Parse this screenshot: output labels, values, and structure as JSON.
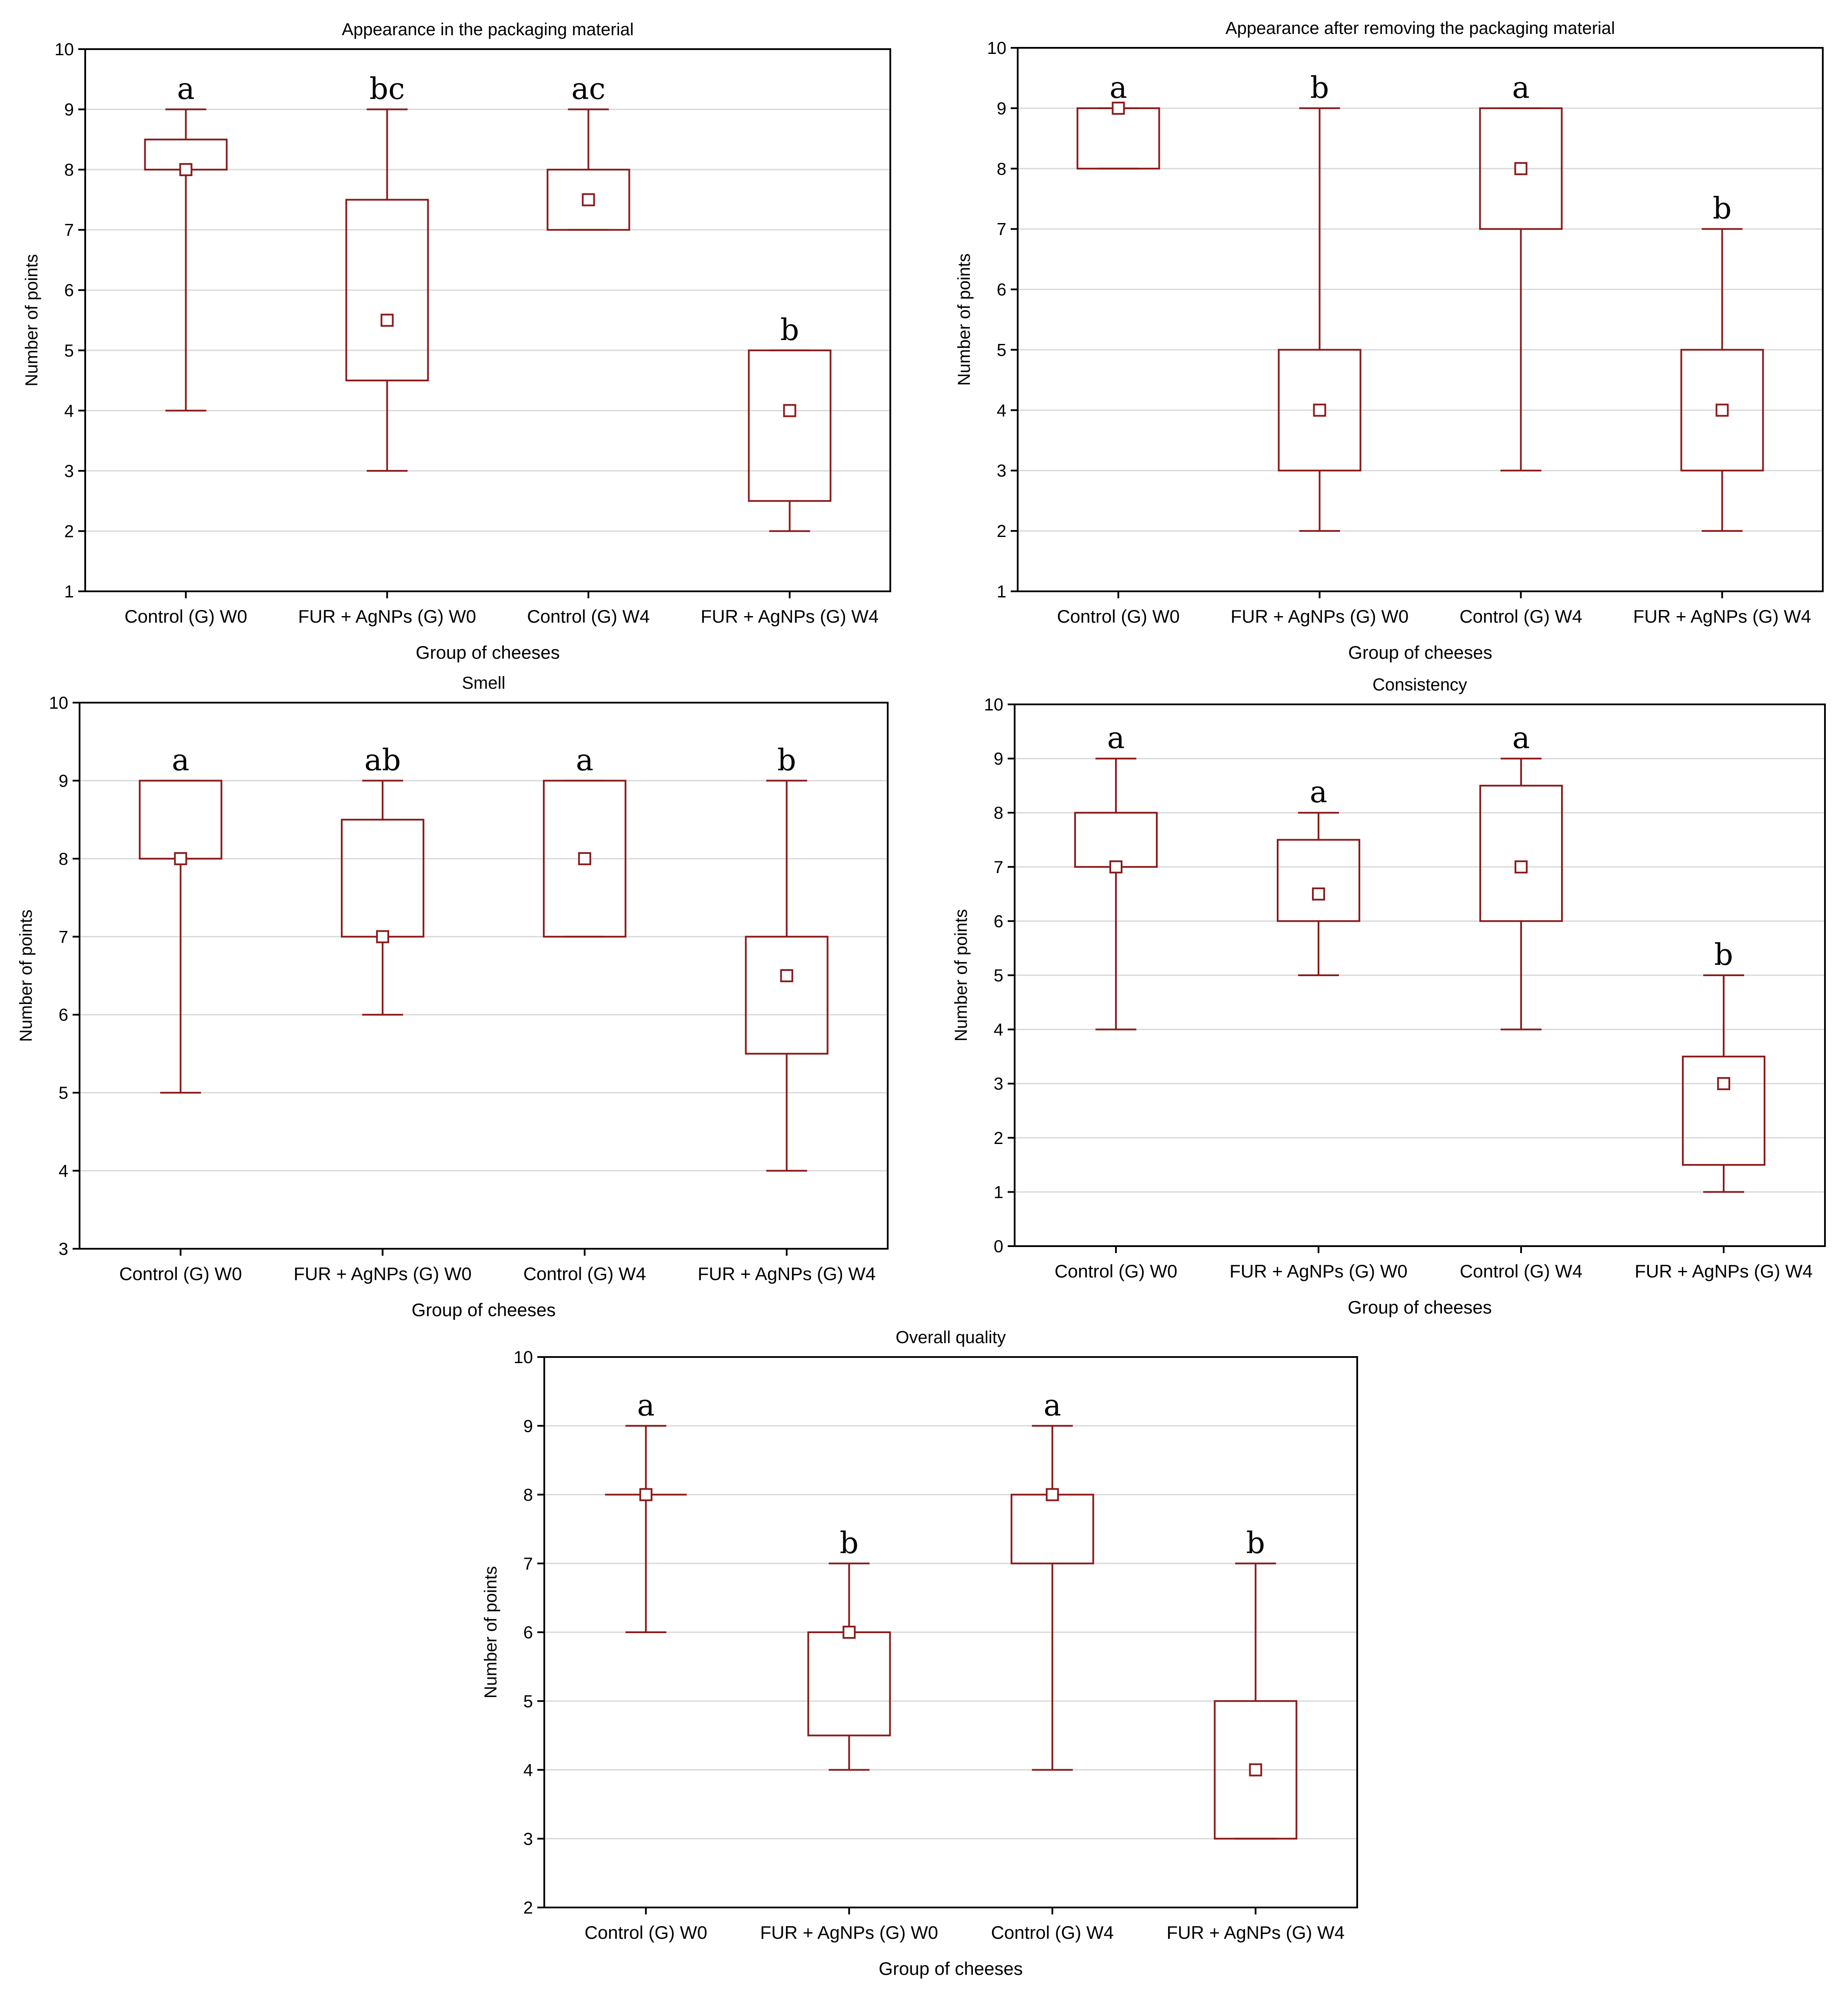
{
  "colors": {
    "box": "#8b1a1a",
    "grid": "#d9d9d9",
    "axis": "#000000"
  },
  "chart_data": [
    {
      "type": "box",
      "title": "Appearance in the packaging material",
      "xlabel": "Group of cheeses",
      "ylabel": "Number of points",
      "ylim": [
        1,
        10
      ],
      "yticks": [
        "1",
        "2",
        "3",
        "4",
        "5",
        "6",
        "7",
        "8",
        "9",
        "10"
      ],
      "categories": [
        "Control (G) W0",
        "FUR + AgNPs (G) W0",
        "Control (G) W4",
        "FUR + AgNPs (G) W4"
      ],
      "boxes": [
        {
          "min": 4,
          "q1": 8,
          "median": 8,
          "q3": 8.5,
          "max": 9,
          "letter": "a"
        },
        {
          "min": 3,
          "q1": 4.5,
          "median": 5.5,
          "q3": 7.5,
          "max": 9,
          "letter": "bc"
        },
        {
          "min": 7,
          "q1": 7,
          "median": 7.5,
          "q3": 8,
          "max": 9,
          "letter": "ac"
        },
        {
          "min": 2,
          "q1": 2.5,
          "median": 4,
          "q3": 5,
          "max": 5,
          "letter": "b"
        }
      ]
    },
    {
      "type": "box",
      "title": "Appearance after removing the packaging material",
      "xlabel": "Group of cheeses",
      "ylabel": "Number of points",
      "ylim": [
        1,
        10
      ],
      "yticks": [
        "1",
        "2",
        "3",
        "4",
        "5",
        "6",
        "7",
        "8",
        "9",
        "10"
      ],
      "categories": [
        "Control (G) W0",
        "FUR + AgNPs (G) W0",
        "Control (G) W4",
        "FUR + AgNPs (G) W4"
      ],
      "boxes": [
        {
          "min": 8,
          "q1": 8,
          "median": 9,
          "q3": 9,
          "max": 9,
          "letter": "a"
        },
        {
          "min": 2,
          "q1": 3,
          "median": 4,
          "q3": 5,
          "max": 9,
          "letter": "b"
        },
        {
          "min": 3,
          "q1": 7,
          "median": 8,
          "q3": 9,
          "max": 9,
          "letter": "a"
        },
        {
          "min": 2,
          "q1": 3,
          "median": 4,
          "q3": 5,
          "max": 7,
          "letter": "b"
        }
      ]
    },
    {
      "type": "box",
      "title": "Smell",
      "xlabel": "Group of cheeses",
      "ylabel": "Number of points",
      "ylim": [
        3,
        10
      ],
      "yticks": [
        "3",
        "4",
        "5",
        "6",
        "7",
        "8",
        "9",
        "10"
      ],
      "categories": [
        "Control (G) W0",
        "FUR + AgNPs (G) W0",
        "Control (G) W4",
        "FUR + AgNPs (G) W4"
      ],
      "boxes": [
        {
          "min": 5,
          "q1": 8,
          "median": 8,
          "q3": 9,
          "max": 9,
          "letter": "a"
        },
        {
          "min": 6,
          "q1": 7,
          "median": 7,
          "q3": 8.5,
          "max": 9,
          "letter": "ab"
        },
        {
          "min": 7,
          "q1": 7,
          "median": 8,
          "q3": 9,
          "max": 9,
          "letter": "a"
        },
        {
          "min": 4,
          "q1": 5.5,
          "median": 6.5,
          "q3": 7,
          "max": 9,
          "letter": "b"
        }
      ]
    },
    {
      "type": "box",
      "title": "Consistency",
      "xlabel": "Group of cheeses",
      "ylabel": "Number of points",
      "ylim": [
        0,
        10
      ],
      "yticks": [
        "0",
        "1",
        "2",
        "3",
        "4",
        "5",
        "6",
        "7",
        "8",
        "9",
        "10"
      ],
      "categories": [
        "Control (G) W0",
        "FUR + AgNPs (G) W0",
        "Control (G) W4",
        "FUR + AgNPs (G) W4"
      ],
      "boxes": [
        {
          "min": 4,
          "q1": 7,
          "median": 7,
          "q3": 8,
          "max": 9,
          "letter": "a"
        },
        {
          "min": 5,
          "q1": 6,
          "median": 6.5,
          "q3": 7.5,
          "max": 8,
          "letter": "a"
        },
        {
          "min": 4,
          "q1": 6,
          "median": 7,
          "q3": 8.5,
          "max": 9,
          "letter": "a"
        },
        {
          "min": 1,
          "q1": 1.5,
          "median": 3,
          "q3": 3.5,
          "max": 5,
          "letter": "b"
        }
      ]
    },
    {
      "type": "box",
      "title": "Overall quality",
      "xlabel": "Group of cheeses",
      "ylabel": "Number of points",
      "ylim": [
        2,
        10
      ],
      "yticks": [
        "2",
        "3",
        "4",
        "5",
        "6",
        "7",
        "8",
        "9",
        "10"
      ],
      "categories": [
        "Control (G) W0",
        "FUR + AgNPs (G) W0",
        "Control (G) W4",
        "FUR + AgNPs (G) W4"
      ],
      "boxes": [
        {
          "min": 6,
          "q1": 8,
          "median": 8,
          "q3": 8,
          "max": 9,
          "letter": "a"
        },
        {
          "min": 4,
          "q1": 4.5,
          "median": 6,
          "q3": 6,
          "max": 7,
          "letter": "b"
        },
        {
          "min": 4,
          "q1": 7,
          "median": 8,
          "q3": 8,
          "max": 9,
          "letter": "a"
        },
        {
          "min": 3,
          "q1": 3,
          "median": 4,
          "q3": 5,
          "max": 7,
          "letter": "b"
        }
      ]
    }
  ]
}
